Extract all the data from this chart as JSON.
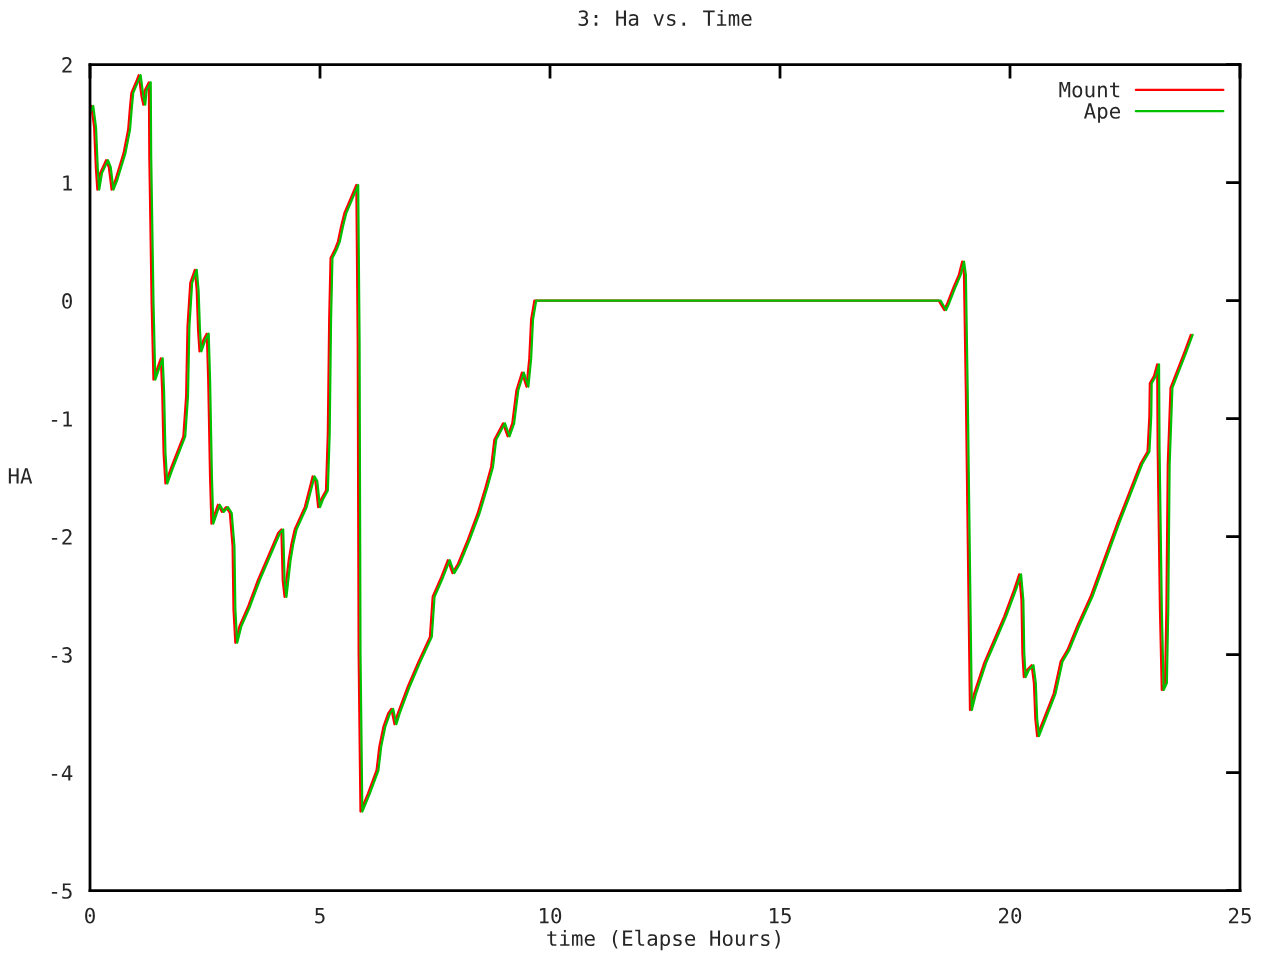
{
  "chart_data": {
    "type": "line",
    "title": "3: Ha vs. Time",
    "xlabel": "time (Elapse Hours)",
    "ylabel": "HA",
    "xlim": [
      0,
      25
    ],
    "ylim": [
      -5,
      2
    ],
    "xticks": [
      0,
      5,
      10,
      15,
      20,
      25
    ],
    "yticks": [
      -5,
      -4,
      -3,
      -2,
      -1,
      0,
      1,
      2
    ],
    "grid": false,
    "legend": "top right",
    "marker": "none",
    "line_style": "solid",
    "series": [
      {
        "name": "Mount",
        "color": "#ff0000",
        "x": [
          0,
          0.03,
          0.09,
          0.13,
          0.16,
          0.22,
          0.35,
          0.41,
          0.47,
          0.55,
          0.73,
          0.83,
          0.87,
          0.9,
          1.02,
          1.06,
          1.12,
          1.16,
          1.19,
          1.28,
          1.29,
          1.34,
          1.38,
          1.45,
          1.54,
          1.57,
          1.6,
          1.64,
          1.77,
          2.03,
          2.09,
          2.12,
          2.18,
          2.28,
          2.32,
          2.35,
          2.38,
          2.47,
          2.54,
          2.57,
          2.61,
          2.64,
          2.78,
          2.87,
          2.96,
          3.04,
          3.1,
          3.12,
          3.16,
          3.25,
          3.44,
          3.65,
          3.87,
          4.09,
          4.16,
          4.19,
          4.23,
          4.27,
          4.32,
          4.38,
          4.45,
          4.67,
          4.84,
          4.9,
          4.96,
          5.03,
          5.13,
          5.17,
          5.2,
          5.23,
          5.32,
          5.39,
          5.46,
          5.53,
          5.65,
          5.79,
          5.82,
          5.84,
          5.88,
          6.04,
          6.23,
          6.29,
          6.38,
          6.48,
          6.55,
          6.62,
          6.69,
          6.91,
          7.13,
          7.39,
          7.45,
          7.64,
          7.78,
          7.88,
          8.0,
          8.21,
          8.43,
          8.6,
          8.72,
          8.79,
          8.98,
          9.08,
          9.18,
          9.27,
          9.39,
          9.44,
          9.49,
          9.55,
          9.59,
          9.66,
          18.45,
          18.57,
          18.64,
          18.78,
          18.89,
          18.96,
          19.0,
          19.04,
          19.1,
          19.13,
          19.22,
          19.44,
          19.65,
          19.87,
          20.09,
          20.2,
          20.25,
          20.27,
          20.3,
          20.37,
          20.47,
          20.52,
          20.55,
          20.59,
          20.74,
          20.95,
          21.1,
          21.25,
          21.46,
          21.75,
          22.04,
          22.33,
          22.62,
          22.84,
          22.99,
          23.03,
          23.04,
          23.13,
          23.2,
          23.21,
          23.26,
          23.3,
          23.37,
          23.4,
          23.43,
          23.49,
          23.64,
          23.78,
          23.93
        ],
        "values": [
          1.59,
          1.65,
          1.47,
          1.11,
          0.94,
          1.08,
          1.19,
          1.13,
          0.94,
          1.02,
          1.25,
          1.45,
          1.64,
          1.76,
          1.87,
          1.91,
          1.73,
          1.66,
          1.78,
          1.85,
          1.22,
          -0.02,
          -0.67,
          -0.59,
          -0.49,
          -0.77,
          -1.29,
          -1.55,
          -1.41,
          -1.15,
          -0.81,
          -0.22,
          0.15,
          0.26,
          0.09,
          -0.25,
          -0.43,
          -0.33,
          -0.28,
          -0.67,
          -1.49,
          -1.89,
          -1.73,
          -1.79,
          -1.75,
          -1.8,
          -2.08,
          -2.62,
          -2.9,
          -2.76,
          -2.59,
          -2.37,
          -2.17,
          -1.97,
          -1.94,
          -2.37,
          -2.51,
          -2.37,
          -2.2,
          -2.06,
          -1.94,
          -1.75,
          -1.49,
          -1.53,
          -1.75,
          -1.68,
          -1.61,
          -1.13,
          -0.16,
          0.36,
          0.43,
          0.5,
          0.63,
          0.74,
          0.85,
          0.98,
          -0.35,
          -2.99,
          -4.33,
          -4.18,
          -3.98,
          -3.78,
          -3.61,
          -3.5,
          -3.46,
          -3.59,
          -3.5,
          -3.27,
          -3.07,
          -2.85,
          -2.51,
          -2.34,
          -2.2,
          -2.31,
          -2.23,
          -2.03,
          -1.8,
          -1.58,
          -1.41,
          -1.18,
          -1.04,
          -1.15,
          -1.04,
          -0.76,
          -0.61,
          -0.67,
          -0.73,
          -0.49,
          -0.16,
          0,
          0,
          -0.08,
          -0.02,
          0.12,
          0.22,
          0.33,
          0.22,
          -0.76,
          -2.57,
          -3.47,
          -3.33,
          -3.07,
          -2.88,
          -2.68,
          -2.45,
          -2.32,
          -2.54,
          -2.99,
          -3.19,
          -3.13,
          -3.09,
          -3.24,
          -3.54,
          -3.69,
          -3.54,
          -3.33,
          -3.06,
          -2.96,
          -2.76,
          -2.51,
          -2.2,
          -1.89,
          -1.6,
          -1.38,
          -1.28,
          -0.98,
          -0.7,
          -0.64,
          -0.54,
          -1.24,
          -2.62,
          -3.3,
          -3.24,
          -2.62,
          -1.39,
          -0.74,
          -0.59,
          -0.45,
          -0.29
        ]
      },
      {
        "name": "Ape",
        "color": "#00c000",
        "x": [
          0,
          0.07,
          0.13,
          0.17,
          0.2,
          0.26,
          0.39,
          0.45,
          0.51,
          0.59,
          0.77,
          0.87,
          0.91,
          0.94,
          1.06,
          1.1,
          1.16,
          1.2,
          1.23,
          1.32,
          1.33,
          1.38,
          1.42,
          1.49,
          1.58,
          1.61,
          1.64,
          1.68,
          1.81,
          2.07,
          2.13,
          2.16,
          2.22,
          2.32,
          2.36,
          2.39,
          2.42,
          2.51,
          2.58,
          2.61,
          2.65,
          2.68,
          2.82,
          2.91,
          3.0,
          3.08,
          3.14,
          3.16,
          3.2,
          3.29,
          3.48,
          3.69,
          3.91,
          4.13,
          4.2,
          4.23,
          4.27,
          4.31,
          4.36,
          4.42,
          4.49,
          4.71,
          4.88,
          4.94,
          5.0,
          5.07,
          5.17,
          5.21,
          5.24,
          5.27,
          5.36,
          5.43,
          5.5,
          5.57,
          5.69,
          5.83,
          5.86,
          5.88,
          5.92,
          6.08,
          6.27,
          6.33,
          6.42,
          6.52,
          6.59,
          6.66,
          6.73,
          6.95,
          7.17,
          7.43,
          7.49,
          7.68,
          7.82,
          7.92,
          8.04,
          8.25,
          8.47,
          8.64,
          8.76,
          8.83,
          9.02,
          9.12,
          9.22,
          9.31,
          9.43,
          9.48,
          9.53,
          9.59,
          9.63,
          9.7,
          18.49,
          18.61,
          18.68,
          18.82,
          18.93,
          19.0,
          19.04,
          19.08,
          19.14,
          19.17,
          19.26,
          19.48,
          19.69,
          19.91,
          20.13,
          20.24,
          20.29,
          20.31,
          20.34,
          20.41,
          20.51,
          20.56,
          20.59,
          20.63,
          20.78,
          20.99,
          21.14,
          21.29,
          21.5,
          21.79,
          22.08,
          22.37,
          22.66,
          22.88,
          23.03,
          23.07,
          23.08,
          23.17,
          23.24,
          23.25,
          23.3,
          23.34,
          23.41,
          23.44,
          23.47,
          23.53,
          23.68,
          23.82,
          23.97
        ],
        "values": [
          1.59,
          1.65,
          1.47,
          1.11,
          0.94,
          1.08,
          1.19,
          1.13,
          0.94,
          1.02,
          1.25,
          1.45,
          1.64,
          1.76,
          1.87,
          1.91,
          1.73,
          1.66,
          1.78,
          1.85,
          1.22,
          -0.02,
          -0.67,
          -0.59,
          -0.49,
          -0.77,
          -1.29,
          -1.55,
          -1.41,
          -1.15,
          -0.81,
          -0.22,
          0.15,
          0.26,
          0.09,
          -0.25,
          -0.43,
          -0.33,
          -0.28,
          -0.67,
          -1.49,
          -1.89,
          -1.73,
          -1.79,
          -1.75,
          -1.8,
          -2.08,
          -2.62,
          -2.9,
          -2.76,
          -2.59,
          -2.37,
          -2.17,
          -1.97,
          -1.94,
          -2.37,
          -2.51,
          -2.37,
          -2.2,
          -2.06,
          -1.94,
          -1.75,
          -1.49,
          -1.53,
          -1.75,
          -1.68,
          -1.61,
          -1.13,
          -0.16,
          0.36,
          0.43,
          0.5,
          0.63,
          0.74,
          0.85,
          0.98,
          -0.35,
          -2.99,
          -4.33,
          -4.18,
          -3.98,
          -3.78,
          -3.61,
          -3.5,
          -3.46,
          -3.59,
          -3.5,
          -3.27,
          -3.07,
          -2.85,
          -2.51,
          -2.34,
          -2.2,
          -2.31,
          -2.23,
          -2.03,
          -1.8,
          -1.58,
          -1.41,
          -1.18,
          -1.04,
          -1.15,
          -1.04,
          -0.76,
          -0.61,
          -0.67,
          -0.73,
          -0.49,
          -0.16,
          0,
          0,
          -0.08,
          -0.02,
          0.12,
          0.22,
          0.33,
          0.22,
          -0.76,
          -2.57,
          -3.47,
          -3.33,
          -3.07,
          -2.88,
          -2.68,
          -2.45,
          -2.32,
          -2.54,
          -2.99,
          -3.19,
          -3.13,
          -3.09,
          -3.24,
          -3.54,
          -3.69,
          -3.54,
          -3.33,
          -3.06,
          -2.96,
          -2.76,
          -2.51,
          -2.2,
          -1.89,
          -1.6,
          -1.38,
          -1.28,
          -0.98,
          -0.7,
          -0.64,
          -0.54,
          -1.24,
          -2.62,
          -3.3,
          -3.24,
          -2.62,
          -1.39,
          -0.74,
          -0.59,
          -0.45,
          -0.29
        ]
      }
    ]
  }
}
